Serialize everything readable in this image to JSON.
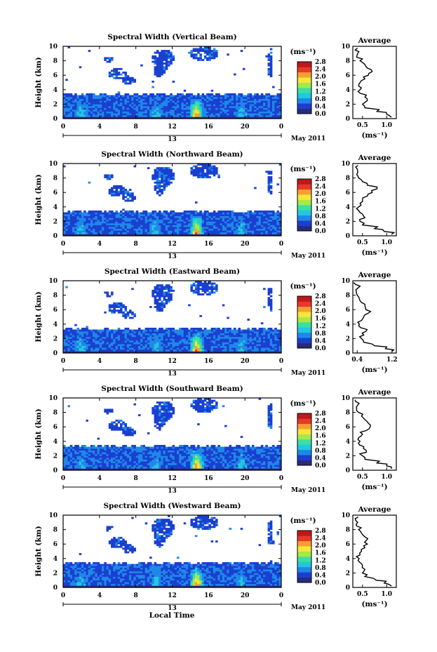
{
  "figure": {
    "xlabel": "Local Time",
    "x_ticks": [
      "0",
      "4",
      "8",
      "12",
      "16",
      "20",
      "0"
    ],
    "day_label": "13",
    "month_label": "May 2011",
    "ylabel": "Height (km)",
    "y_ticks": [
      "0",
      "2",
      "4",
      "6",
      "8",
      "10"
    ],
    "colorbar_unit": "(ms⁻¹)",
    "colorbar_ticks": [
      "0.0",
      "0.4",
      "0.8",
      "1.2",
      "1.6",
      "2.0",
      "2.4",
      "2.8"
    ],
    "avg_title": "Average",
    "avg_xlabel": "(ms⁻¹)"
  },
  "chart_data": [
    {
      "type": "heatmap",
      "title": "Spectral Width (Vertical Beam)",
      "x_range_hours": [
        0,
        24
      ],
      "y_range_km": [
        0,
        10
      ],
      "colorbar_range": [
        0.0,
        2.8
      ],
      "colormap": [
        "#2a2a7a",
        "#1a3fd0",
        "#1e88e8",
        "#22c7e0",
        "#3be0a0",
        "#a8e848",
        "#f6e63a",
        "#f7a032",
        "#e8382a",
        "#c01818"
      ],
      "profile": {
        "title": "Average",
        "x_ticks": [
          "0.5",
          "1.0"
        ],
        "x_range": [
          0.3,
          1.2
        ],
        "heights_km": [
          0.2,
          0.6,
          1.0,
          1.5,
          2.0,
          2.5,
          3.0,
          3.5,
          4.0,
          4.5,
          5.0,
          5.5,
          6.0,
          6.5,
          7.0,
          7.5,
          8.0,
          8.5,
          9.0,
          9.5
        ],
        "values": [
          1.1,
          1.0,
          0.8,
          0.55,
          0.5,
          0.6,
          0.55,
          0.45,
          0.45,
          0.42,
          0.45,
          0.55,
          0.62,
          0.7,
          0.6,
          0.55,
          0.45,
          0.38,
          0.4,
          0.35
        ]
      }
    },
    {
      "type": "heatmap",
      "title": "Spectral Width (Northward Beam)",
      "x_range_hours": [
        0,
        24
      ],
      "y_range_km": [
        0,
        10
      ],
      "colorbar_range": [
        0.0,
        2.8
      ],
      "profile": {
        "title": "Average",
        "x_ticks": [
          "0.5",
          "1.0"
        ],
        "x_range": [
          0.3,
          1.2
        ],
        "heights_km": [
          0.2,
          0.6,
          1.0,
          1.5,
          2.0,
          2.5,
          3.0,
          3.5,
          4.0,
          4.5,
          5.0,
          5.5,
          6.0,
          6.5,
          7.0,
          7.5,
          8.0,
          8.5,
          9.0,
          9.5
        ],
        "values": [
          1.1,
          0.95,
          0.75,
          0.5,
          0.45,
          0.55,
          0.5,
          0.42,
          0.42,
          0.45,
          0.5,
          0.6,
          0.7,
          0.8,
          0.6,
          0.5,
          0.42,
          0.38,
          0.4,
          0.36
        ]
      }
    },
    {
      "type": "heatmap",
      "title": "Spectral Width (Eastward Beam)",
      "x_range_hours": [
        0,
        24
      ],
      "y_range_km": [
        0,
        10
      ],
      "colorbar_range": [
        0.0,
        2.8
      ],
      "profile": {
        "title": "Average",
        "x_ticks": [
          "0.4",
          "1.2"
        ],
        "x_range": [
          0.3,
          1.3
        ],
        "heights_km": [
          0.2,
          0.6,
          1.0,
          1.5,
          2.0,
          2.5,
          3.0,
          3.5,
          4.0,
          4.5,
          5.0,
          5.5,
          6.0,
          6.5,
          7.0,
          7.5,
          8.0,
          8.5,
          9.0,
          9.5
        ],
        "values": [
          1.2,
          1.05,
          0.8,
          0.55,
          0.5,
          0.55,
          0.6,
          0.48,
          0.45,
          0.5,
          0.55,
          0.65,
          0.6,
          0.58,
          0.5,
          0.45,
          0.4,
          0.38,
          0.42,
          0.36
        ]
      }
    },
    {
      "type": "heatmap",
      "title": "Spectral Width (Southward Beam)",
      "x_range_hours": [
        0,
        24
      ],
      "y_range_km": [
        0,
        10
      ],
      "colorbar_range": [
        0.0,
        2.8
      ],
      "profile": {
        "title": "Average",
        "x_ticks": [
          "0.5",
          "1.0"
        ],
        "x_range": [
          0.3,
          1.2
        ],
        "heights_km": [
          0.2,
          0.6,
          1.0,
          1.5,
          2.0,
          2.5,
          3.0,
          3.5,
          4.0,
          4.5,
          5.0,
          5.5,
          6.0,
          6.5,
          7.0,
          7.5,
          8.0,
          8.5,
          9.0,
          9.5
        ],
        "values": [
          1.1,
          1.0,
          0.8,
          0.55,
          0.5,
          0.58,
          0.52,
          0.44,
          0.45,
          0.42,
          0.5,
          0.58,
          0.66,
          0.62,
          0.55,
          0.48,
          0.42,
          0.38,
          0.4,
          0.36
        ]
      }
    },
    {
      "type": "heatmap",
      "title": "Spectral Width (Westward Beam)",
      "x_range_hours": [
        0,
        24
      ],
      "y_range_km": [
        0,
        10
      ],
      "colorbar_range": [
        0.0,
        2.8
      ],
      "profile": {
        "title": "Average",
        "x_ticks": [
          "0.5",
          "1.0"
        ],
        "x_range": [
          0.3,
          1.2
        ],
        "heights_km": [
          0.2,
          0.6,
          1.0,
          1.5,
          2.0,
          2.5,
          3.0,
          3.5,
          4.0,
          4.5,
          5.0,
          5.5,
          6.0,
          6.5,
          7.0,
          7.5,
          8.0,
          8.5,
          9.0,
          9.5
        ],
        "values": [
          1.1,
          0.95,
          0.78,
          0.55,
          0.5,
          0.55,
          0.5,
          0.44,
          0.43,
          0.45,
          0.48,
          0.55,
          0.6,
          0.58,
          0.55,
          0.48,
          0.42,
          0.38,
          0.4,
          0.35
        ]
      }
    }
  ]
}
